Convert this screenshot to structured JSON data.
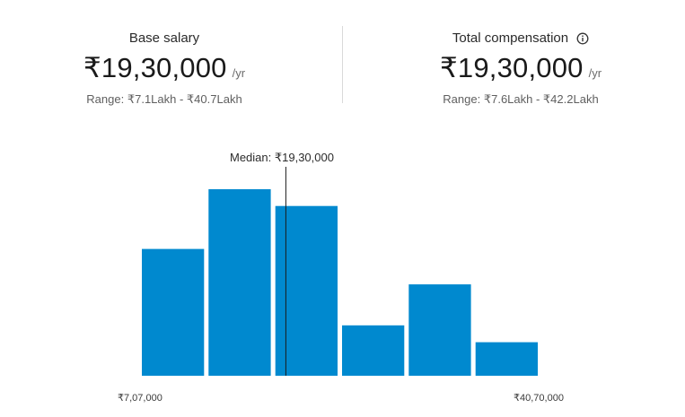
{
  "base_salary": {
    "label": "Base salary",
    "amount": "₹19,30,000",
    "unit": "/yr",
    "range": "Range: ₹7.1Lakh - ₹40.7Lakh"
  },
  "total_compensation": {
    "label": "Total compensation",
    "info_icon": "info-icon",
    "amount": "₹19,30,000",
    "unit": "/yr",
    "range": "Range: ₹7.6Lakh - ₹42.2Lakh"
  },
  "chart_data": {
    "type": "bar",
    "bar_color": "#0089CF",
    "median_label": "Median: ₹19,30,000",
    "median_value": 1930000,
    "x_range": [
      707000,
      4070000
    ],
    "x_min_label": "₹7,07,000",
    "x_max_label": "₹40,70,000",
    "values": [
      0.68,
      1.0,
      0.91,
      0.27,
      0.49,
      0.18
    ]
  }
}
